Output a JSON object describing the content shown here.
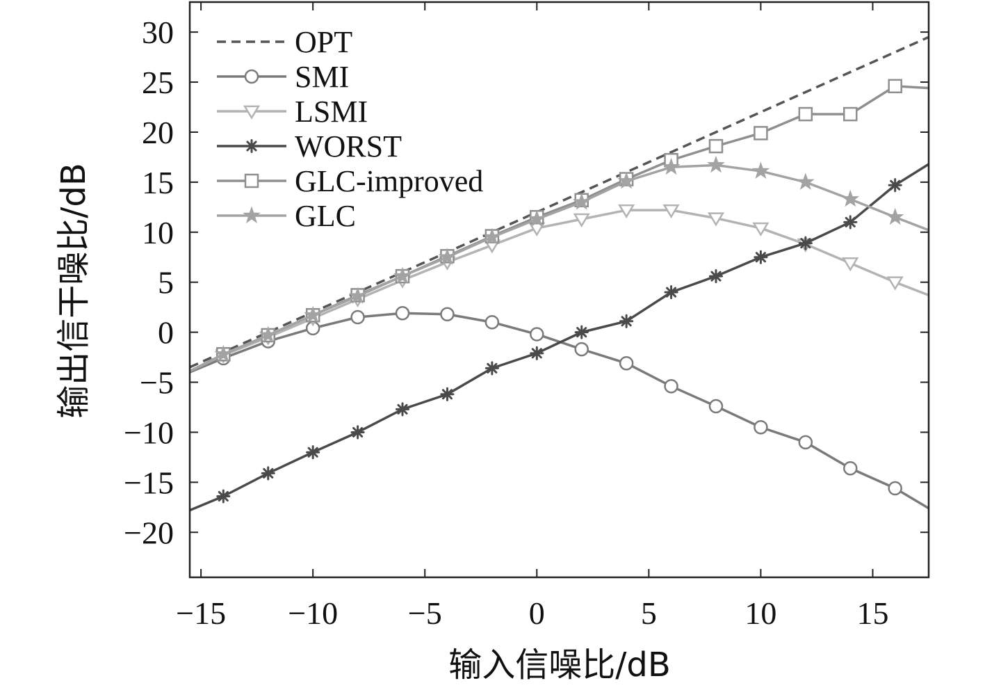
{
  "chart_data": {
    "type": "line",
    "title": "",
    "xlabel": "输入信噪比/dB",
    "ylabel": "输出信干噪比/dB",
    "xlim": [
      -15.5,
      17.5
    ],
    "ylim": [
      -24.5,
      33
    ],
    "xticks": [
      -15,
      -10,
      -5,
      0,
      5,
      10,
      15
    ],
    "xtick_labels": [
      "−15",
      "−10",
      "−5",
      "0",
      "5",
      "10",
      "15"
    ],
    "yticks": [
      -20,
      -15,
      -10,
      -5,
      0,
      5,
      10,
      15,
      20,
      25,
      30
    ],
    "ytick_labels": [
      "−20",
      "−15",
      "−10",
      "−5",
      "0",
      "5",
      "10",
      "15",
      "20",
      "25",
      "30"
    ],
    "grid": false,
    "legend_position": "top-left",
    "series": [
      {
        "name": "OPT",
        "color": "#555555",
        "dash": "dashed",
        "marker": "none",
        "x": [
          -15.5,
          17.5
        ],
        "y": [
          -3.5,
          29.5
        ]
      },
      {
        "name": "SMI",
        "color": "#7a7a7a",
        "dash": "solid",
        "marker": "circle",
        "x": [
          -15.5,
          -14,
          -12,
          -10,
          -8,
          -6,
          -4,
          -2,
          0,
          2,
          4,
          6,
          8,
          10,
          12,
          14,
          16,
          17.5
        ],
        "y": [
          -4,
          -2.6,
          -0.9,
          0.4,
          1.5,
          1.9,
          1.8,
          1.0,
          -0.2,
          -1.7,
          -3.1,
          -5.4,
          -7.4,
          -9.5,
          -11.0,
          -13.6,
          -15.6,
          -17.6
        ]
      },
      {
        "name": "LSMI",
        "color": "#b3b3b3",
        "dash": "solid",
        "marker": "triangle-down",
        "x": [
          -15.5,
          -14,
          -12,
          -10,
          -8,
          -6,
          -4,
          -2,
          0,
          2,
          4,
          6,
          8,
          10,
          12,
          14,
          16,
          17.5
        ],
        "y": [
          -3.9,
          -2.3,
          -0.5,
          1.4,
          3.3,
          5.2,
          7.0,
          8.7,
          10.4,
          11.3,
          12.2,
          12.2,
          11.4,
          10.4,
          8.8,
          6.9,
          5.0,
          3.7
        ]
      },
      {
        "name": "WORST",
        "color": "#4a4a4a",
        "dash": "solid",
        "marker": "asterisk",
        "x": [
          -15.5,
          -14,
          -12,
          -10,
          -8,
          -6,
          -4,
          -2,
          0,
          2,
          4,
          6,
          8,
          10,
          12,
          14,
          16,
          17.5
        ],
        "y": [
          -17.8,
          -16.4,
          -14.1,
          -12.0,
          -10.0,
          -7.7,
          -6.2,
          -3.6,
          -2.1,
          0.0,
          1.1,
          4.0,
          5.6,
          7.5,
          8.9,
          11.0,
          14.7,
          16.8
        ]
      },
      {
        "name": "GLC-improved",
        "color": "#8f8f8f",
        "dash": "solid",
        "marker": "square",
        "x": [
          -15.5,
          -14,
          -12,
          -10,
          -8,
          -6,
          -4,
          -2,
          0,
          2,
          4,
          6,
          8,
          10,
          12,
          14,
          16,
          17.5
        ],
        "y": [
          -3.9,
          -2.2,
          -0.3,
          1.7,
          3.7,
          5.6,
          7.6,
          9.6,
          11.5,
          13.2,
          15.3,
          17.2,
          18.6,
          19.9,
          21.8,
          21.8,
          24.6,
          24.4
        ]
      },
      {
        "name": "GLC",
        "color": "#a3a3a3",
        "dash": "solid",
        "marker": "star",
        "x": [
          -15.5,
          -14,
          -12,
          -10,
          -8,
          -6,
          -4,
          -2,
          0,
          2,
          4,
          6,
          8,
          10,
          12,
          14,
          16,
          17.5
        ],
        "y": [
          -3.9,
          -2.2,
          -0.3,
          1.7,
          3.6,
          5.6,
          7.5,
          9.5,
          11.3,
          13.0,
          15.1,
          16.5,
          16.7,
          16.1,
          15.0,
          13.3,
          11.5,
          10.2
        ]
      }
    ]
  }
}
